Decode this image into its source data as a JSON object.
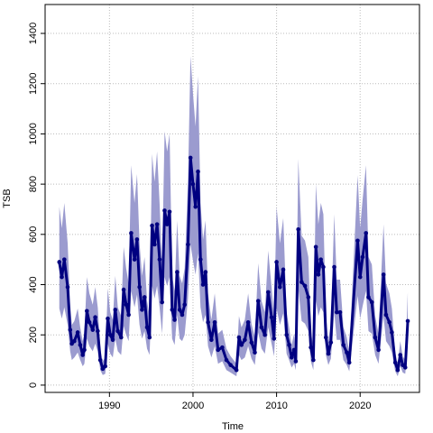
{
  "chart_data": {
    "type": "line",
    "x_label": "Time",
    "y_label": "TSB",
    "x": [
      1984.0,
      1984.3,
      1984.6,
      1985.0,
      1985.3,
      1985.5,
      1985.8,
      1986.2,
      1986.5,
      1986.8,
      1987.0,
      1987.3,
      1987.6,
      1988.0,
      1988.3,
      1988.6,
      1988.9,
      1989.2,
      1989.5,
      1989.8,
      1990.1,
      1990.4,
      1990.7,
      1991.0,
      1991.4,
      1991.7,
      1992.0,
      1992.3,
      1992.6,
      1993.0,
      1993.3,
      1993.6,
      1993.9,
      1994.2,
      1994.5,
      1994.8,
      1995.1,
      1995.4,
      1995.7,
      1996.0,
      1996.3,
      1996.6,
      1996.9,
      1997.2,
      1997.5,
      1997.8,
      1998.1,
      1998.4,
      1998.7,
      1999.0,
      1999.4,
      1999.7,
      2000.0,
      2000.3,
      2000.6,
      2000.9,
      2001.2,
      2001.5,
      2001.8,
      2002.2,
      2002.6,
      2003.0,
      2003.5,
      2004.0,
      2004.5,
      2005.2,
      2005.5,
      2005.8,
      2006.2,
      2006.6,
      2007.0,
      2007.4,
      2007.8,
      2008.2,
      2008.6,
      2009.0,
      2009.4,
      2009.7,
      2010.0,
      2010.4,
      2010.8,
      2011.2,
      2011.5,
      2011.8,
      2012.1,
      2012.3,
      2012.6,
      2013.0,
      2013.4,
      2013.8,
      2014.1,
      2014.4,
      2014.7,
      2015.0,
      2015.3,
      2015.6,
      2015.9,
      2016.2,
      2016.5,
      2016.9,
      2017.2,
      2017.6,
      2018.0,
      2018.4,
      2018.7,
      2019.7,
      2020.0,
      2020.3,
      2020.7,
      2021.0,
      2021.4,
      2021.8,
      2022.2,
      2022.8,
      2023.1,
      2023.5,
      2023.8,
      2024.2,
      2024.5,
      2024.8,
      2025.1,
      2025.4,
      2025.7
    ],
    "values": [
      490,
      430,
      500,
      390,
      220,
      165,
      175,
      210,
      160,
      120,
      140,
      295,
      250,
      220,
      270,
      215,
      100,
      65,
      75,
      265,
      200,
      180,
      300,
      215,
      190,
      380,
      320,
      280,
      605,
      500,
      580,
      390,
      300,
      350,
      230,
      190,
      635,
      560,
      640,
      500,
      330,
      695,
      640,
      690,
      300,
      260,
      450,
      300,
      280,
      320,
      560,
      905,
      800,
      710,
      850,
      500,
      400,
      450,
      250,
      180,
      250,
      140,
      150,
      100,
      80,
      60,
      190,
      160,
      180,
      250,
      170,
      130,
      335,
      230,
      200,
      370,
      270,
      185,
      490,
      390,
      460,
      200,
      160,
      110,
      140,
      95,
      620,
      410,
      395,
      350,
      150,
      100,
      550,
      440,
      500,
      470,
      190,
      125,
      170,
      470,
      290,
      290,
      160,
      130,
      90,
      575,
      430,
      510,
      605,
      350,
      330,
      190,
      140,
      440,
      280,
      250,
      210,
      90,
      60,
      120,
      80,
      70,
      255
    ],
    "lower": [
      305,
      265,
      310,
      240,
      135,
      100,
      110,
      130,
      100,
      75,
      85,
      185,
      155,
      135,
      165,
      135,
      60,
      40,
      45,
      165,
      125,
      110,
      185,
      135,
      120,
      235,
      200,
      175,
      375,
      310,
      360,
      240,
      185,
      215,
      145,
      120,
      395,
      345,
      395,
      310,
      205,
      430,
      395,
      430,
      185,
      160,
      280,
      185,
      175,
      200,
      345,
      560,
      495,
      440,
      525,
      310,
      250,
      280,
      155,
      110,
      155,
      85,
      95,
      60,
      50,
      35,
      120,
      100,
      110,
      155,
      105,
      80,
      210,
      145,
      125,
      230,
      165,
      115,
      305,
      240,
      285,
      125,
      100,
      70,
      85,
      60,
      385,
      255,
      245,
      215,
      95,
      60,
      340,
      275,
      310,
      290,
      120,
      80,
      105,
      290,
      180,
      180,
      100,
      80,
      55,
      355,
      265,
      315,
      375,
      215,
      205,
      120,
      85,
      275,
      175,
      155,
      130,
      55,
      35,
      75,
      50,
      45,
      160
    ],
    "upper": [
      710,
      625,
      725,
      565,
      320,
      240,
      255,
      305,
      230,
      175,
      205,
      430,
      365,
      320,
      390,
      310,
      145,
      95,
      110,
      385,
      290,
      260,
      435,
      310,
      275,
      550,
      465,
      405,
      875,
      725,
      840,
      565,
      435,
      510,
      335,
      275,
      920,
      810,
      930,
      725,
      480,
      1010,
      930,
      1000,
      435,
      375,
      655,
      435,
      405,
      465,
      810,
      1310,
      1160,
      1030,
      1230,
      725,
      580,
      655,
      365,
      260,
      365,
      205,
      220,
      145,
      115,
      85,
      275,
      230,
      260,
      365,
      245,
      190,
      485,
      335,
      290,
      535,
      390,
      270,
      710,
      565,
      665,
      290,
      230,
      160,
      205,
      140,
      900,
      595,
      575,
      510,
      220,
      145,
      800,
      640,
      725,
      680,
      275,
      180,
      245,
      680,
      420,
      420,
      230,
      190,
      130,
      835,
      625,
      740,
      875,
      510,
      480,
      275,
      205,
      640,
      405,
      365,
      305,
      130,
      85,
      175,
      115,
      100,
      370
    ],
    "color": "#000080",
    "band_color": "#9b9bcf",
    "xlim": [
      1982.3,
      2027.1
    ],
    "xticks": [
      1990,
      2000,
      2010,
      2020
    ],
    "ylim": [
      -29,
      1515
    ],
    "yticks": [
      0,
      200,
      400,
      600,
      800,
      1000,
      1200,
      1400
    ],
    "grid": true
  }
}
